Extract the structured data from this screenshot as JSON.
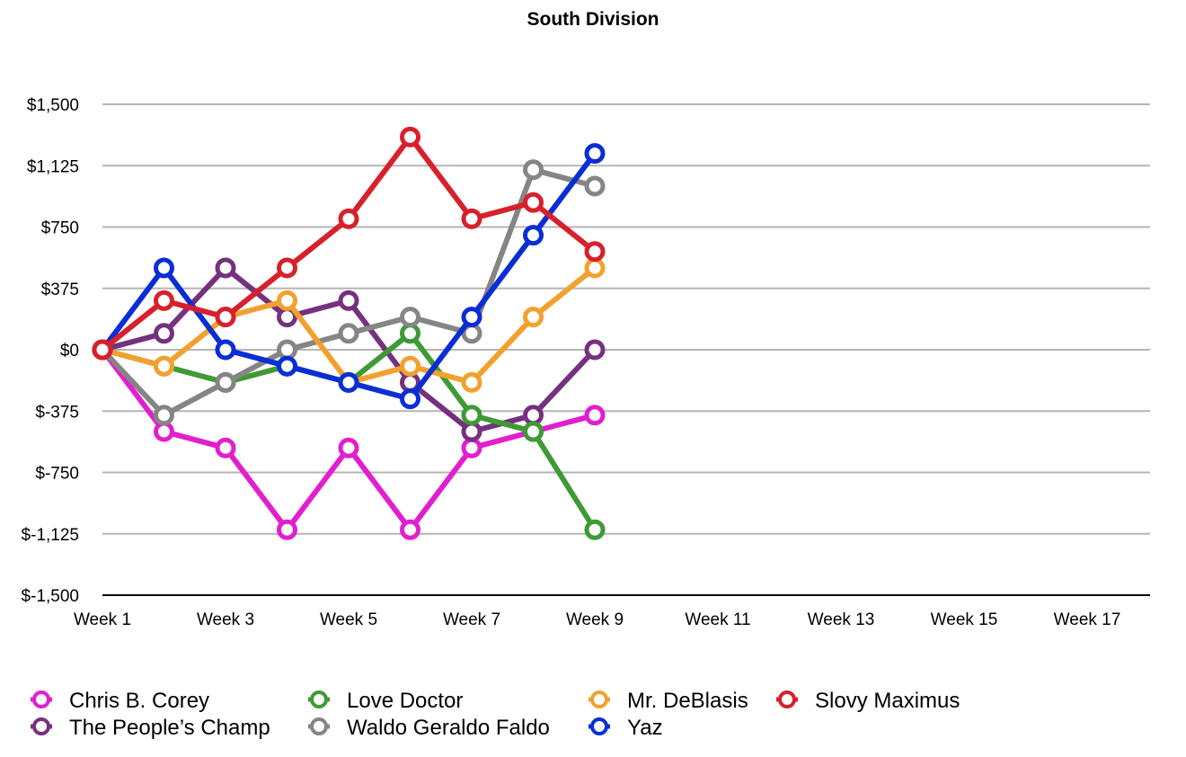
{
  "chart_data": {
    "type": "line",
    "title": "South Division",
    "xlabel": "",
    "ylabel": "",
    "x_tick_labels": [
      "Week 1",
      "Week 3",
      "Week 5",
      "Week 7",
      "Week 9",
      "Week 11",
      "Week 13",
      "Week 15",
      "Week 17"
    ],
    "x_tick_weeks": [
      1,
      3,
      5,
      7,
      9,
      11,
      13,
      15,
      17
    ],
    "xlim": [
      1,
      18
    ],
    "ylim": [
      -1500,
      1500
    ],
    "y_ticks": [
      1500,
      1125,
      750,
      375,
      0,
      -375,
      -750,
      -1125,
      -1500
    ],
    "y_tick_labels": [
      "$1,500",
      "$1,125",
      "$750",
      "$375",
      "$0",
      "$-375",
      "$-750",
      "$-1,125",
      "$-1,500"
    ],
    "grid": true,
    "legend_position": "bottom-left",
    "x": [
      1,
      2,
      3,
      4,
      5,
      6,
      7,
      8,
      9
    ],
    "series": [
      {
        "name": "Chris B. Corey",
        "color": "#e21ecf",
        "values": [
          0,
          -500,
          -600,
          -1100,
          -600,
          -1100,
          -600,
          -500,
          -400
        ]
      },
      {
        "name": "The People’s Champ",
        "color": "#75317e",
        "values": [
          0,
          100,
          500,
          200,
          300,
          -200,
          -500,
          -400,
          0
        ]
      },
      {
        "name": "Love Doctor",
        "color": "#3f9a35",
        "values": [
          0,
          -100,
          -200,
          -100,
          -200,
          100,
          -400,
          -500,
          -1100
        ]
      },
      {
        "name": "Waldo Geraldo Faldo",
        "color": "#858585",
        "values": [
          0,
          -400,
          -200,
          0,
          100,
          200,
          100,
          1100,
          1000
        ]
      },
      {
        "name": "Mr. DeBlasis",
        "color": "#f2a12e",
        "values": [
          0,
          -100,
          200,
          300,
          -200,
          -100,
          -200,
          200,
          500
        ]
      },
      {
        "name": "Yaz",
        "color": "#0a2ed6",
        "values": [
          0,
          500,
          0,
          -100,
          -200,
          -300,
          200,
          700,
          1200
        ]
      },
      {
        "name": "Slovy Maximus",
        "color": "#d8202c",
        "values": [
          0,
          300,
          200,
          500,
          800,
          1300,
          800,
          900,
          600
        ]
      }
    ]
  }
}
